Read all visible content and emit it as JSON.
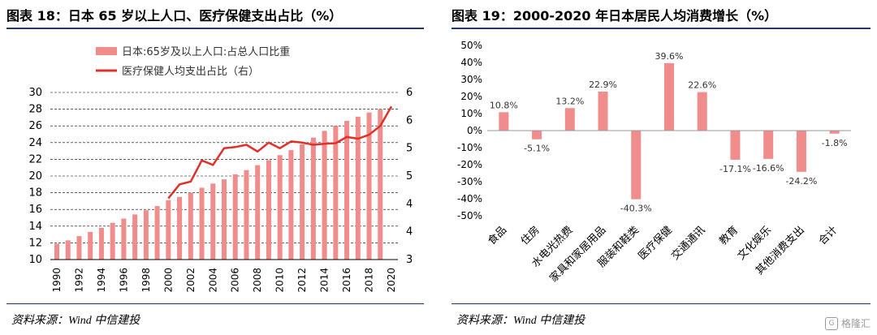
{
  "left_figure": {
    "title": "图表 18：日本 65 岁以上人口、医疗保健支出占比（%）",
    "source": "资料来源：Wind 中信建投"
  },
  "right_figure": {
    "title": "图表 19：2000-2020 年日本居民人均消费增长（%）",
    "source": "资料来源：Wind 中信建投"
  },
  "watermark": {
    "logo": "G",
    "text": "格隆汇"
  },
  "colors": {
    "bar": "#f08c8c",
    "line": "#e0302a",
    "grid": "#000000",
    "rule": "#1f3864"
  },
  "chart_data": [
    {
      "type": "bar+line",
      "title": "",
      "legend_placement": "top-left",
      "categories": [
        "1990",
        "1991",
        "1992",
        "1993",
        "1994",
        "1995",
        "1996",
        "1997",
        "1998",
        "1999",
        "2000",
        "2001",
        "2002",
        "2003",
        "2004",
        "2005",
        "2006",
        "2007",
        "2008",
        "2009",
        "2010",
        "2011",
        "2012",
        "2013",
        "2014",
        "2015",
        "2016",
        "2017",
        "2018",
        "2019"
      ],
      "x_tick_labels": [
        "1990",
        "1992",
        "1994",
        "1996",
        "1998",
        "2000",
        "2002",
        "2004",
        "2006",
        "2008",
        "2010",
        "2012",
        "2014",
        "2016",
        "2018",
        "2020"
      ],
      "y_left": {
        "min": 10,
        "max": 30,
        "ticks": [
          10,
          12,
          14,
          16,
          18,
          20,
          22,
          24,
          26,
          28,
          30
        ]
      },
      "y_right": {
        "min": 3,
        "max": 6,
        "ticks": [
          3,
          3.5,
          4,
          4.5,
          5,
          5.5,
          6
        ],
        "tick_labels": [
          "3",
          "4",
          "4",
          "5",
          "5",
          "6",
          "6"
        ]
      },
      "grid": "horizontal dashed",
      "series": [
        {
          "name": "日本:65岁及以上人口:占总人口比重",
          "type": "bar",
          "axis": "left",
          "values": [
            11.9,
            12.3,
            12.8,
            13.3,
            13.8,
            14.4,
            14.9,
            15.4,
            15.9,
            16.4,
            17.1,
            17.5,
            18.0,
            18.6,
            19.1,
            19.6,
            20.2,
            20.7,
            21.3,
            21.9,
            22.5,
            23.1,
            23.8,
            24.6,
            25.4,
            26.0,
            26.6,
            27.1,
            27.6,
            28.0
          ]
        },
        {
          "name": "医疗保健人均支出占比（右）",
          "type": "line",
          "axis": "right",
          "x": [
            "2000",
            "2001",
            "2002",
            "2003",
            "2004",
            "2005",
            "2006",
            "2007",
            "2008",
            "2009",
            "2010",
            "2011",
            "2012",
            "2013",
            "2014",
            "2015",
            "2016",
            "2017",
            "2018",
            "2019",
            "2020"
          ],
          "values": [
            4.1,
            4.35,
            4.4,
            4.78,
            4.7,
            5.0,
            5.02,
            5.06,
            4.94,
            5.1,
            5.0,
            5.12,
            5.1,
            5.06,
            5.08,
            5.09,
            5.2,
            5.17,
            5.24,
            5.4,
            5.75
          ]
        }
      ]
    },
    {
      "type": "bar",
      "title": "",
      "categories": [
        "食品",
        "住房",
        "水电光热费",
        "家具和家居用品",
        "服装和鞋类",
        "医疗保健",
        "交通通讯",
        "教育",
        "文化娱乐",
        "其他消费支出",
        "合计"
      ],
      "values": [
        10.8,
        -5.1,
        13.2,
        22.9,
        -40.3,
        39.6,
        22.6,
        -17.1,
        -16.6,
        -24.2,
        -1.8
      ],
      "data_labels": [
        "10.8%",
        "-5.1%",
        "13.2%",
        "22.9%",
        "-40.3%",
        "39.6%",
        "22.6%",
        "-17.1%",
        "-16.6%",
        "-24.2%",
        "-1.8%"
      ],
      "y": {
        "min": -50,
        "max": 50,
        "ticks": [
          -50,
          -40,
          -30,
          -20,
          -10,
          0,
          10,
          20,
          30,
          40,
          50
        ],
        "tick_labels": [
          "-50%",
          "-40%",
          "-30%",
          "-20%",
          "-10%",
          "0%",
          "10%",
          "20%",
          "30%",
          "40%",
          "50%"
        ]
      },
      "grid": "none"
    }
  ]
}
